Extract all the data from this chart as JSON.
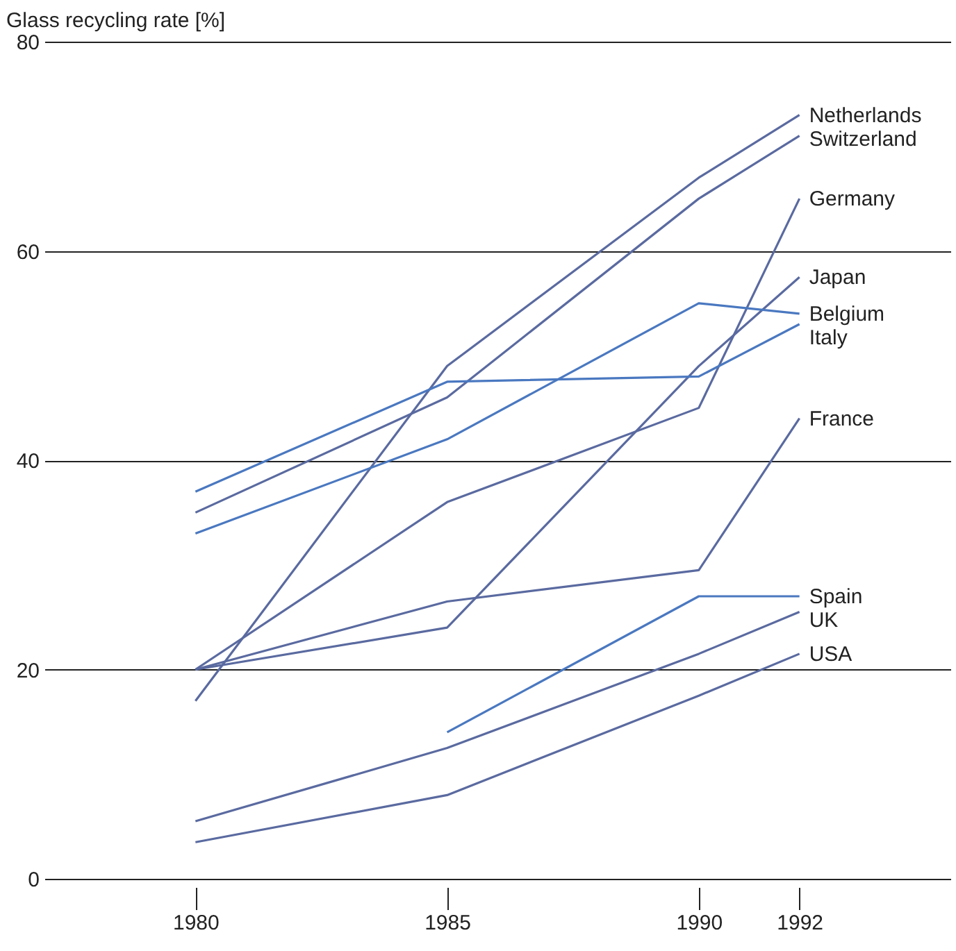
{
  "chart_data": {
    "type": "line",
    "ylabel": "Glass recycling rate [%]",
    "x": [
      1980,
      1985,
      1990,
      1992
    ],
    "series": [
      {
        "name": "Netherlands",
        "color": "#5a6aa0",
        "values": [
          17,
          49,
          67,
          73
        ]
      },
      {
        "name": "Switzerland",
        "color": "#5a6aa0",
        "values": [
          35,
          46,
          65,
          71
        ]
      },
      {
        "name": "Germany",
        "color": "#5a6aa0",
        "values": [
          20,
          36,
          45,
          65
        ]
      },
      {
        "name": "Japan",
        "color": "#5a6aa0",
        "values": [
          20,
          24,
          49,
          57.5
        ]
      },
      {
        "name": "Belgium",
        "color": "#4a78c0",
        "values": [
          33,
          42,
          55,
          54
        ]
      },
      {
        "name": "Italy",
        "color": "#4a78c0",
        "values": [
          37,
          47.5,
          48,
          53
        ]
      },
      {
        "name": "France",
        "color": "#5a6aa0",
        "values": [
          20,
          26.5,
          29.5,
          44
        ]
      },
      {
        "name": "Spain",
        "color": "#4a78c0",
        "values": [
          null,
          14,
          27,
          27
        ]
      },
      {
        "name": "UK",
        "color": "#5a6aa0",
        "values": [
          5.5,
          12.5,
          21.5,
          25.5
        ]
      },
      {
        "name": "USA",
        "color": "#5a6aa0",
        "values": [
          3.5,
          8,
          17.5,
          21.5
        ]
      }
    ],
    "xlim": [
      1977,
      1995
    ],
    "xticks": [
      1980,
      1985,
      1990,
      1992
    ],
    "ylim": [
      0,
      80
    ],
    "yticks": [
      0,
      20,
      40,
      60,
      80
    ],
    "grid": "y",
    "legend": false
  }
}
